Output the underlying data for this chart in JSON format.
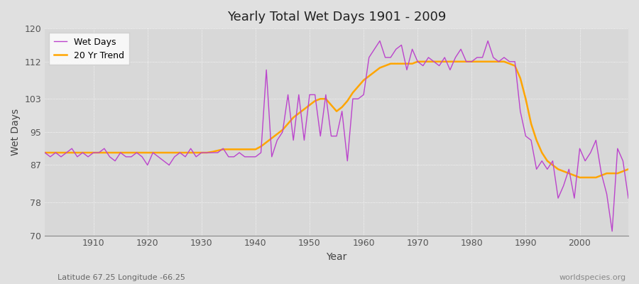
{
  "title": "Yearly Total Wet Days 1901 - 2009",
  "xlabel": "Year",
  "ylabel": "Wet Days",
  "subtitle_left": "Latitude 67.25 Longitude -66.25",
  "subtitle_right": "worldspecies.org",
  "legend_entries": [
    "Wet Days",
    "20 Yr Trend"
  ],
  "line_color_wet": "#BB44CC",
  "line_color_trend": "#FFA500",
  "bg_color": "#E0E0E0",
  "plot_bg_color": "#D8D8D8",
  "ylim": [
    70,
    120
  ],
  "yticks": [
    70,
    78,
    87,
    95,
    103,
    112,
    120
  ],
  "years": [
    1901,
    1902,
    1903,
    1904,
    1905,
    1906,
    1907,
    1908,
    1909,
    1910,
    1911,
    1912,
    1913,
    1914,
    1915,
    1916,
    1917,
    1918,
    1919,
    1920,
    1921,
    1922,
    1923,
    1924,
    1925,
    1926,
    1927,
    1928,
    1929,
    1930,
    1931,
    1932,
    1933,
    1934,
    1935,
    1936,
    1937,
    1938,
    1939,
    1940,
    1941,
    1942,
    1943,
    1944,
    1945,
    1946,
    1947,
    1948,
    1949,
    1950,
    1951,
    1952,
    1953,
    1954,
    1955,
    1956,
    1957,
    1958,
    1959,
    1960,
    1961,
    1962,
    1963,
    1964,
    1965,
    1966,
    1967,
    1968,
    1969,
    1970,
    1971,
    1972,
    1973,
    1974,
    1975,
    1976,
    1977,
    1978,
    1979,
    1980,
    1981,
    1982,
    1983,
    1984,
    1985,
    1986,
    1987,
    1988,
    1989,
    1990,
    1991,
    1992,
    1993,
    1994,
    1995,
    1996,
    1997,
    1998,
    1999,
    2000,
    2001,
    2002,
    2003,
    2004,
    2005,
    2006,
    2007,
    2008,
    2009
  ],
  "wet_days": [
    90,
    89,
    90,
    89,
    90,
    91,
    89,
    90,
    89,
    90,
    90,
    91,
    89,
    88,
    90,
    89,
    89,
    90,
    89,
    87,
    90,
    89,
    88,
    87,
    89,
    90,
    89,
    91,
    89,
    90,
    90,
    90,
    90,
    91,
    89,
    89,
    90,
    89,
    89,
    89,
    90,
    110,
    89,
    93,
    95,
    104,
    93,
    104,
    93,
    104,
    104,
    94,
    104,
    94,
    94,
    100,
    88,
    103,
    103,
    104,
    113,
    115,
    117,
    113,
    113,
    115,
    116,
    110,
    115,
    112,
    111,
    113,
    112,
    111,
    113,
    110,
    113,
    115,
    112,
    112,
    113,
    113,
    117,
    113,
    112,
    113,
    112,
    112,
    100,
    94,
    93,
    86,
    88,
    86,
    88,
    79,
    82,
    86,
    79,
    91,
    88,
    90,
    93,
    85,
    80,
    71,
    91,
    88,
    79
  ],
  "trend": [
    90.0,
    90.0,
    90.0,
    90.0,
    90.0,
    90.0,
    90.0,
    90.0,
    90.0,
    90.0,
    90.0,
    90.0,
    90.0,
    90.0,
    90.0,
    90.0,
    90.0,
    90.0,
    90.0,
    90.0,
    90.0,
    90.0,
    90.0,
    90.0,
    90.0,
    90.0,
    90.0,
    90.0,
    90.0,
    90.0,
    90.0,
    90.2,
    90.5,
    90.8,
    90.8,
    90.8,
    90.8,
    90.8,
    90.8,
    90.8,
    91.5,
    92.5,
    93.5,
    94.5,
    95.5,
    97.0,
    98.5,
    99.5,
    100.5,
    101.5,
    102.5,
    103.0,
    103.0,
    101.5,
    100.0,
    101.0,
    102.5,
    104.5,
    106.0,
    107.5,
    108.5,
    109.5,
    110.5,
    111.0,
    111.5,
    111.5,
    111.5,
    111.5,
    111.5,
    112.0,
    112.0,
    112.0,
    112.0,
    112.0,
    112.0,
    112.0,
    112.0,
    112.0,
    112.0,
    112.0,
    112.0,
    112.0,
    112.0,
    112.0,
    112.0,
    112.0,
    111.5,
    111.0,
    108.0,
    103.0,
    97.0,
    93.0,
    90.0,
    88.0,
    87.0,
    86.0,
    85.5,
    85.0,
    84.5,
    84.0,
    84.0,
    84.0,
    84.0,
    84.5,
    85.0,
    85.0,
    85.0,
    85.5,
    86.0
  ]
}
